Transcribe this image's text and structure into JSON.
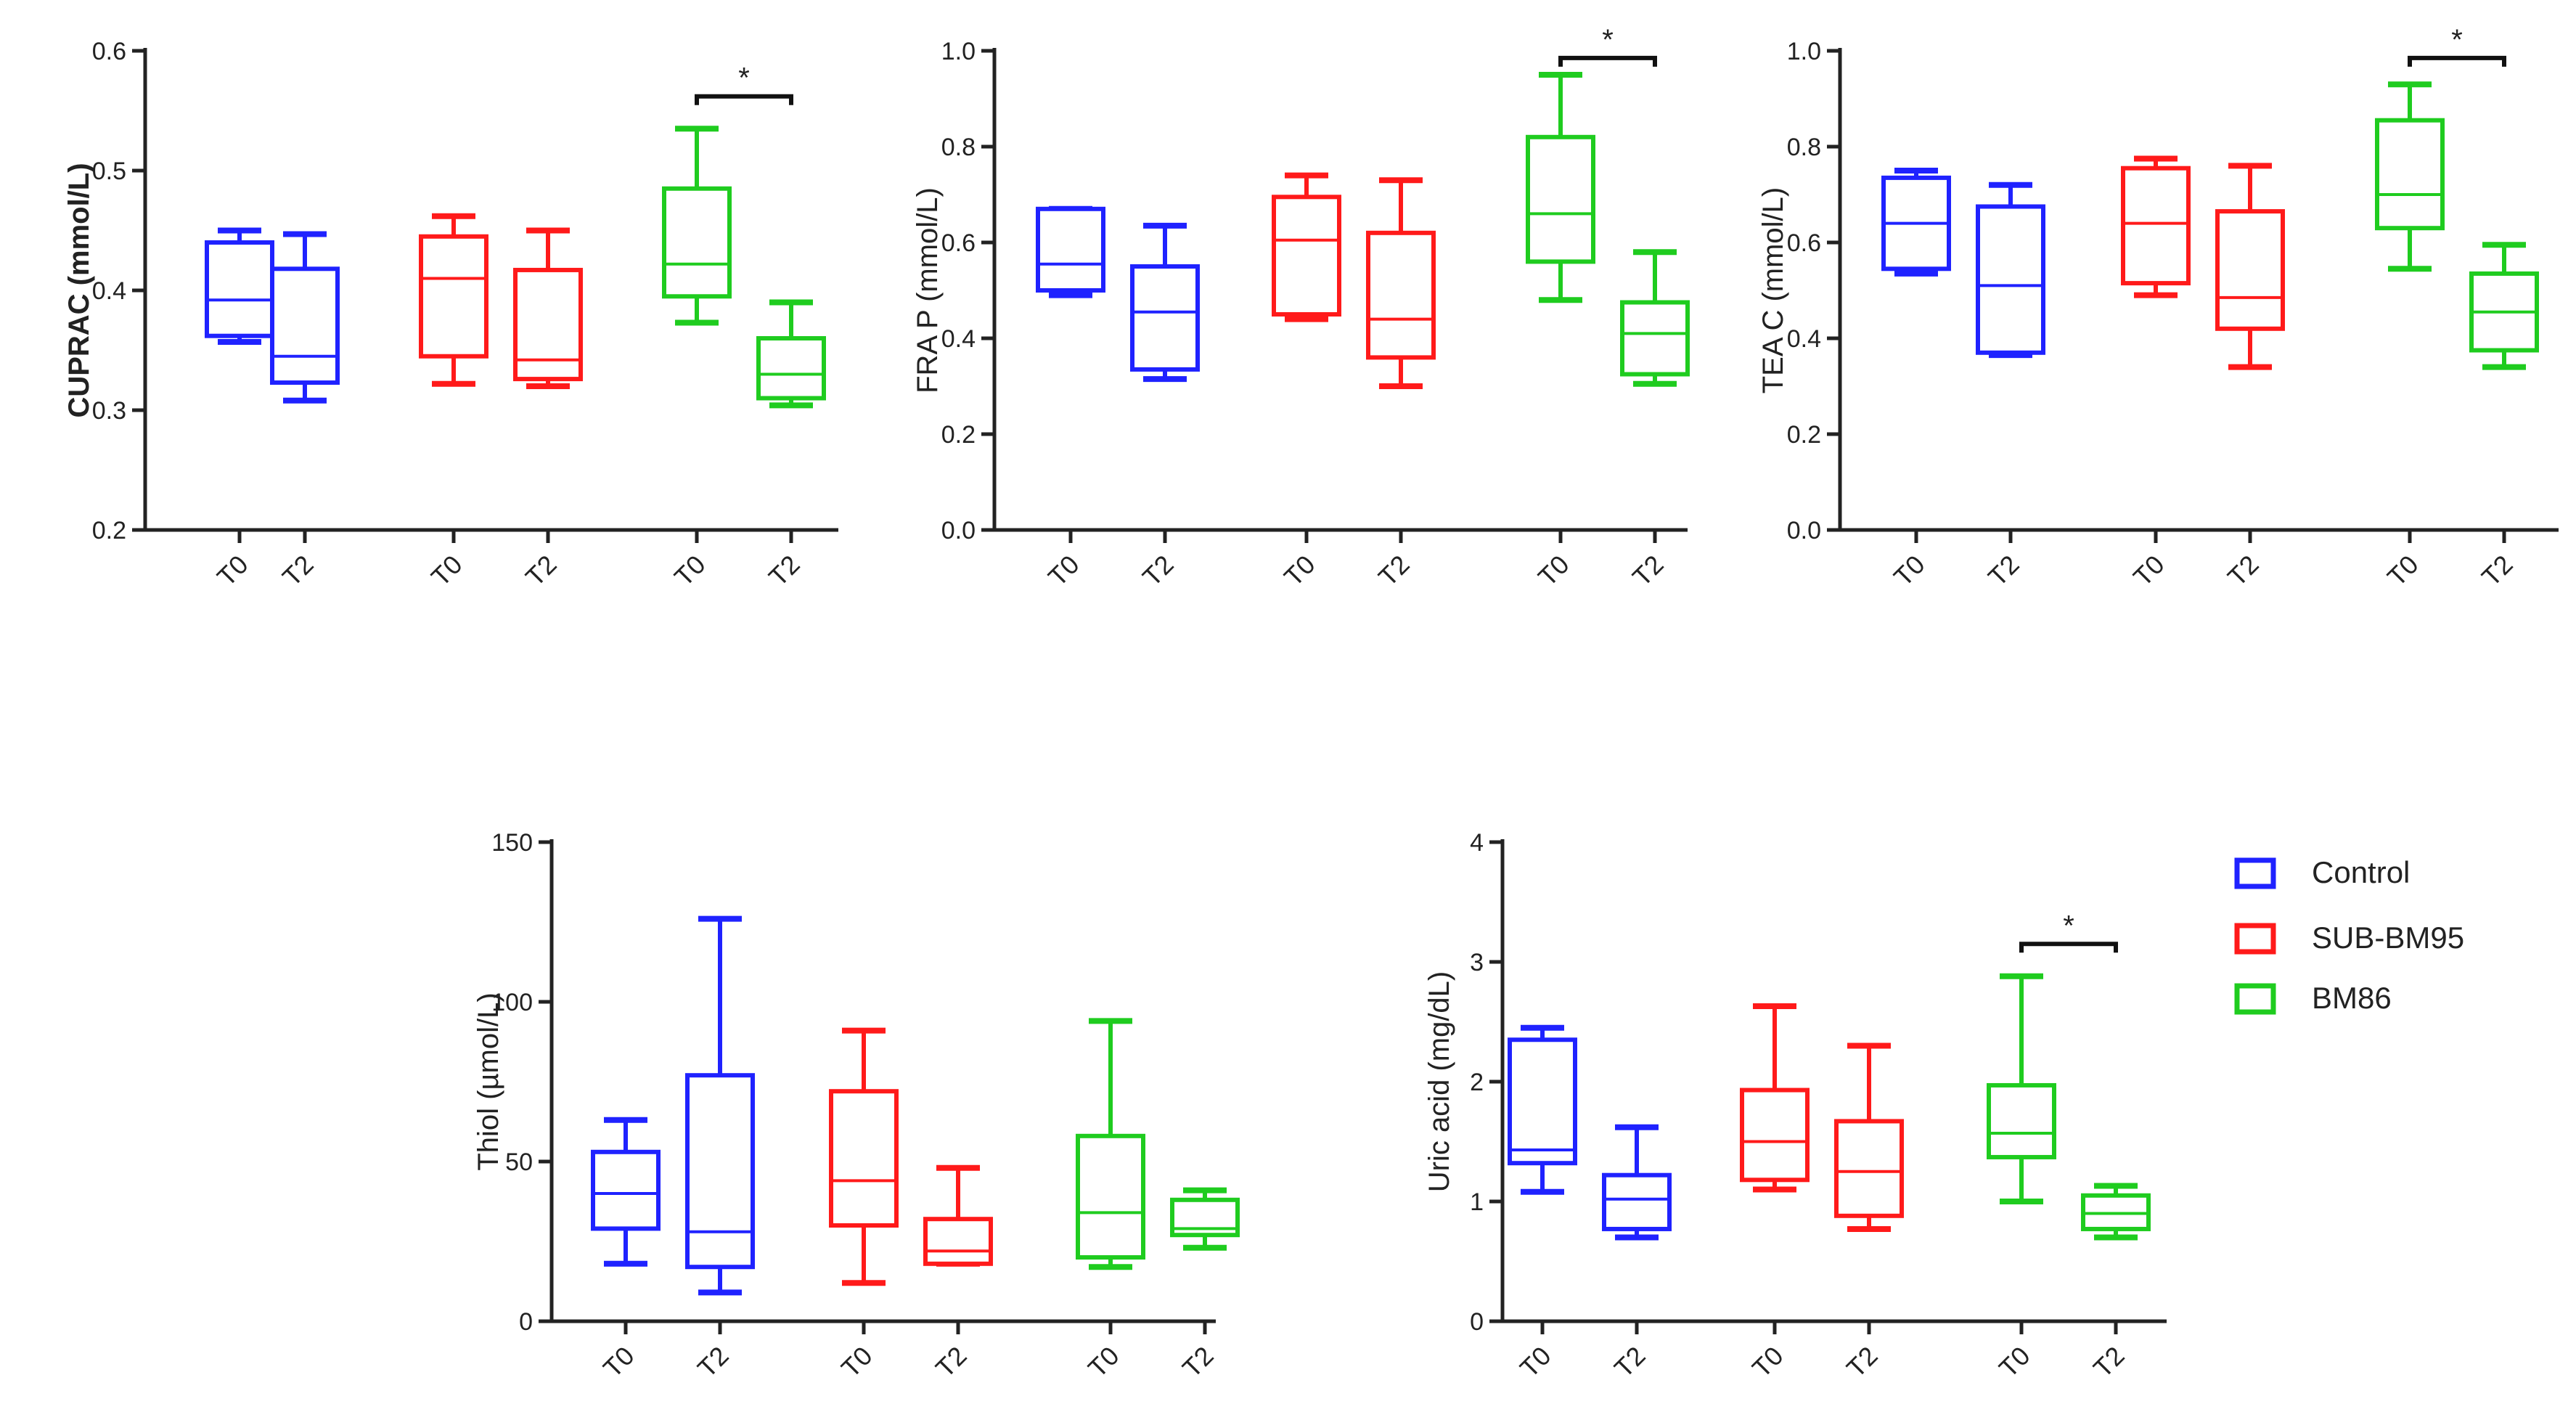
{
  "colors": {
    "Control": "#1f22ff",
    "SUB-BM95": "#ff1a1a",
    "BM86": "#1fcc1f",
    "axis": "#222222"
  },
  "legend": [
    {
      "name": "Control",
      "color": "#1f22ff"
    },
    {
      "name": "SUB-BM95",
      "color": "#ff1a1a"
    },
    {
      "name": "BM86",
      "color": "#1fcc1f"
    }
  ],
  "chart_data": [
    {
      "type": "box",
      "id": "cuprac",
      "ylabel": "CUPRAC (mmol/L)",
      "ylim": [
        0.2,
        0.6
      ],
      "yticks": [
        "0.2",
        "0.3",
        "0.4",
        "0.5",
        "0.6"
      ],
      "categories": [
        "T0",
        "T2",
        "T0",
        "T2",
        "T0",
        "T2"
      ],
      "boxes": [
        {
          "group": "Control",
          "label": "T0",
          "min": 0.357,
          "q1": 0.362,
          "median": 0.392,
          "q3": 0.44,
          "max": 0.45
        },
        {
          "group": "Control",
          "label": "T2",
          "min": 0.308,
          "q1": 0.323,
          "median": 0.345,
          "q3": 0.418,
          "max": 0.447
        },
        {
          "group": "SUB-BM95",
          "label": "T0",
          "min": 0.322,
          "q1": 0.345,
          "median": 0.41,
          "q3": 0.445,
          "max": 0.462
        },
        {
          "group": "SUB-BM95",
          "label": "T2",
          "min": 0.32,
          "q1": 0.326,
          "median": 0.342,
          "q3": 0.417,
          "max": 0.45
        },
        {
          "group": "BM86",
          "label": "T0",
          "min": 0.373,
          "q1": 0.395,
          "median": 0.422,
          "q3": 0.485,
          "max": 0.535
        },
        {
          "group": "BM86",
          "label": "T2",
          "min": 0.304,
          "q1": 0.31,
          "median": 0.33,
          "q3": 0.36,
          "max": 0.39
        }
      ],
      "significance": [
        {
          "from": 4,
          "to": 5,
          "y": 0.562,
          "label": "*"
        }
      ]
    },
    {
      "type": "box",
      "id": "frap",
      "ylabel": "FRA P (mmol/L)",
      "ylim": [
        0.0,
        1.0
      ],
      "yticks": [
        "0.0",
        "0.2",
        "0.4",
        "0.6",
        "0.8",
        "1.0"
      ],
      "categories": [
        "T0",
        "T2",
        "T0",
        "T2",
        "T0",
        "T2"
      ],
      "boxes": [
        {
          "group": "Control",
          "label": "T0",
          "min": 0.49,
          "q1": 0.5,
          "median": 0.555,
          "q3": 0.67,
          "max": 0.67
        },
        {
          "group": "Control",
          "label": "T2",
          "min": 0.315,
          "q1": 0.335,
          "median": 0.455,
          "q3": 0.55,
          "max": 0.635
        },
        {
          "group": "SUB-BM95",
          "label": "T0",
          "min": 0.44,
          "q1": 0.45,
          "median": 0.605,
          "q3": 0.695,
          "max": 0.74
        },
        {
          "group": "SUB-BM95",
          "label": "T2",
          "min": 0.3,
          "q1": 0.36,
          "median": 0.44,
          "q3": 0.62,
          "max": 0.73
        },
        {
          "group": "BM86",
          "label": "T0",
          "min": 0.48,
          "q1": 0.56,
          "median": 0.66,
          "q3": 0.82,
          "max": 0.95
        },
        {
          "group": "BM86",
          "label": "T2",
          "min": 0.305,
          "q1": 0.325,
          "median": 0.41,
          "q3": 0.475,
          "max": 0.58
        }
      ],
      "significance": [
        {
          "from": 4,
          "to": 5,
          "y": 0.985,
          "label": "*"
        }
      ]
    },
    {
      "type": "box",
      "id": "teac",
      "ylabel": "TEA C (mmol/L)",
      "ylim": [
        0.0,
        1.0
      ],
      "yticks": [
        "0.0",
        "0.2",
        "0.4",
        "0.6",
        "0.8",
        "1.0"
      ],
      "categories": [
        "T0",
        "T2",
        "T0",
        "T2",
        "T0",
        "T2"
      ],
      "boxes": [
        {
          "group": "Control",
          "label": "T0",
          "min": 0.535,
          "q1": 0.545,
          "median": 0.64,
          "q3": 0.735,
          "max": 0.75
        },
        {
          "group": "Control",
          "label": "T2",
          "min": 0.365,
          "q1": 0.37,
          "median": 0.51,
          "q3": 0.675,
          "max": 0.72
        },
        {
          "group": "SUB-BM95",
          "label": "T0",
          "min": 0.49,
          "q1": 0.515,
          "median": 0.64,
          "q3": 0.755,
          "max": 0.775
        },
        {
          "group": "SUB-BM95",
          "label": "T2",
          "min": 0.34,
          "q1": 0.42,
          "median": 0.485,
          "q3": 0.665,
          "max": 0.76
        },
        {
          "group": "BM86",
          "label": "T0",
          "min": 0.545,
          "q1": 0.63,
          "median": 0.7,
          "q3": 0.855,
          "max": 0.93
        },
        {
          "group": "BM86",
          "label": "T2",
          "min": 0.34,
          "q1": 0.375,
          "median": 0.455,
          "q3": 0.535,
          "max": 0.595
        }
      ],
      "significance": [
        {
          "from": 4,
          "to": 5,
          "y": 0.985,
          "label": "*"
        }
      ]
    },
    {
      "type": "box",
      "id": "thiol",
      "ylabel": "Thiol (µmol/L)",
      "ylim": [
        0,
        150
      ],
      "yticks": [
        "0",
        "50",
        "100",
        "150"
      ],
      "categories": [
        "T0",
        "T2",
        "T0",
        "T2",
        "T0",
        "T2"
      ],
      "boxes": [
        {
          "group": "Control",
          "label": "T0",
          "min": 18,
          "q1": 29,
          "median": 40,
          "q3": 53,
          "max": 63
        },
        {
          "group": "Control",
          "label": "T2",
          "min": 9,
          "q1": 17,
          "median": 28,
          "q3": 77,
          "max": 126
        },
        {
          "group": "SUB-BM95",
          "label": "T0",
          "min": 12,
          "q1": 30,
          "median": 44,
          "q3": 72,
          "max": 91
        },
        {
          "group": "SUB-BM95",
          "label": "T2",
          "min": 18,
          "q1": 18,
          "median": 22,
          "q3": 32,
          "max": 48
        },
        {
          "group": "BM86",
          "label": "T0",
          "min": 17,
          "q1": 20,
          "median": 34,
          "q3": 58,
          "max": 94
        },
        {
          "group": "BM86",
          "label": "T2",
          "min": 23,
          "q1": 27,
          "median": 29,
          "q3": 38,
          "max": 41
        }
      ],
      "significance": []
    },
    {
      "type": "box",
      "id": "uric",
      "ylabel": "Uric acid (mg/dL)",
      "ylim": [
        0,
        4
      ],
      "yticks": [
        "0",
        "1",
        "2",
        "3",
        "4"
      ],
      "categories": [
        "T0",
        "T2",
        "T0",
        "T2",
        "T0",
        "T2"
      ],
      "boxes": [
        {
          "group": "Control",
          "label": "T0",
          "min": 1.08,
          "q1": 1.32,
          "median": 1.43,
          "q3": 2.35,
          "max": 2.45
        },
        {
          "group": "Control",
          "label": "T2",
          "min": 0.7,
          "q1": 0.77,
          "median": 1.02,
          "q3": 1.22,
          "max": 1.62
        },
        {
          "group": "SUB-BM95",
          "label": "T0",
          "min": 1.1,
          "q1": 1.18,
          "median": 1.5,
          "q3": 1.93,
          "max": 2.63
        },
        {
          "group": "SUB-BM95",
          "label": "T2",
          "min": 0.77,
          "q1": 0.88,
          "median": 1.25,
          "q3": 1.67,
          "max": 2.3
        },
        {
          "group": "BM86",
          "label": "T0",
          "min": 1.0,
          "q1": 1.37,
          "median": 1.57,
          "q3": 1.97,
          "max": 2.88
        },
        {
          "group": "BM86",
          "label": "T2",
          "min": 0.7,
          "q1": 0.77,
          "median": 0.9,
          "q3": 1.05,
          "max": 1.13
        }
      ],
      "significance": [
        {
          "from": 4,
          "to": 5,
          "y": 3.15,
          "label": "*"
        }
      ]
    }
  ]
}
